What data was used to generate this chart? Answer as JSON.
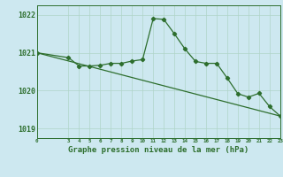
{
  "title": "Graphe pression niveau de la mer (hPa)",
  "bg_color": "#cde8f0",
  "grid_color": "#b0d4c8",
  "line_color": "#2d6e2d",
  "ylim": [
    1018.75,
    1022.25
  ],
  "yticks": [
    1019,
    1020,
    1021,
    1022
  ],
  "xlim": [
    0,
    23
  ],
  "xticks": [
    0,
    3,
    4,
    5,
    6,
    7,
    8,
    9,
    10,
    11,
    12,
    13,
    14,
    15,
    16,
    17,
    18,
    19,
    20,
    21,
    22,
    23
  ],
  "line1_x": [
    0,
    3,
    4,
    5,
    6,
    7,
    8,
    9,
    10,
    11,
    12,
    13,
    14,
    15,
    16,
    17,
    18,
    19,
    20,
    21,
    22,
    23
  ],
  "line1_y": [
    1021.0,
    1020.87,
    1020.65,
    1020.65,
    1020.67,
    1020.72,
    1020.72,
    1020.78,
    1020.82,
    1021.9,
    1021.88,
    1021.5,
    1021.1,
    1020.77,
    1020.72,
    1020.72,
    1020.33,
    1019.92,
    1019.83,
    1019.93,
    1019.58,
    1019.33
  ],
  "line2_x": [
    0,
    23
  ],
  "line2_y": [
    1021.0,
    1019.33
  ]
}
